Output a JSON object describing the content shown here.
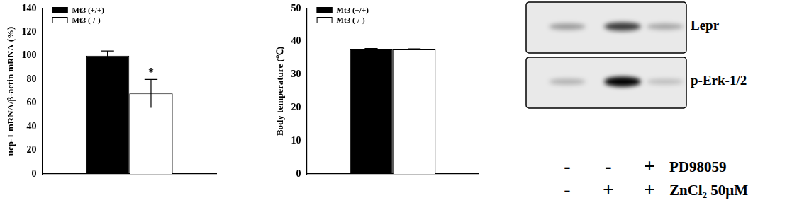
{
  "chart_data": [
    {
      "type": "bar",
      "y_label": "ucp-1 mRNA/β-actin mRNA (%)",
      "categories": [
        null
      ],
      "series": [
        {
          "name": "Mt3 (+/+)",
          "color": "#000000",
          "values": [
            100
          ],
          "errors": [
            4
          ]
        },
        {
          "name": "Mt3 (-/-)",
          "color": "#ffffff",
          "values": [
            68
          ],
          "errors": [
            12
          ]
        }
      ],
      "annotations": [
        {
          "text": "*",
          "series": "Mt3 (-/-)",
          "category_index": 0
        }
      ],
      "ylim": [
        0,
        140
      ],
      "yticks": [
        0,
        20,
        40,
        60,
        80,
        100,
        120,
        140
      ],
      "grid": false,
      "legend": "upper left"
    },
    {
      "type": "bar",
      "y_label": "Body temperature (℃)",
      "categories": [
        null
      ],
      "series": [
        {
          "name": "Mt3 (+/+)",
          "color": "#000000",
          "values": [
            37.6
          ],
          "errors": [
            0.3
          ]
        },
        {
          "name": "Mt3 (-/-)",
          "color": "#ffffff",
          "values": [
            37.6
          ],
          "errors": [
            0.2
          ]
        }
      ],
      "ylim": [
        0,
        50
      ],
      "yticks": [
        0,
        10,
        20,
        30,
        40,
        50
      ],
      "grid": false,
      "legend": "upper left"
    }
  ],
  "blot": {
    "bands": [
      {
        "label": "Lepr",
        "intensity": [
          0.35,
          0.75,
          0.3
        ]
      },
      {
        "label": "p-Erk-1/2",
        "intensity": [
          0.25,
          1.0,
          0.2
        ]
      }
    ],
    "treatments": [
      {
        "label": "PD98059",
        "lanes": [
          "-",
          "-",
          "+"
        ]
      },
      {
        "label": "ZnCl₂ 50μM",
        "lanes": [
          "-",
          "+",
          "+"
        ]
      }
    ]
  }
}
